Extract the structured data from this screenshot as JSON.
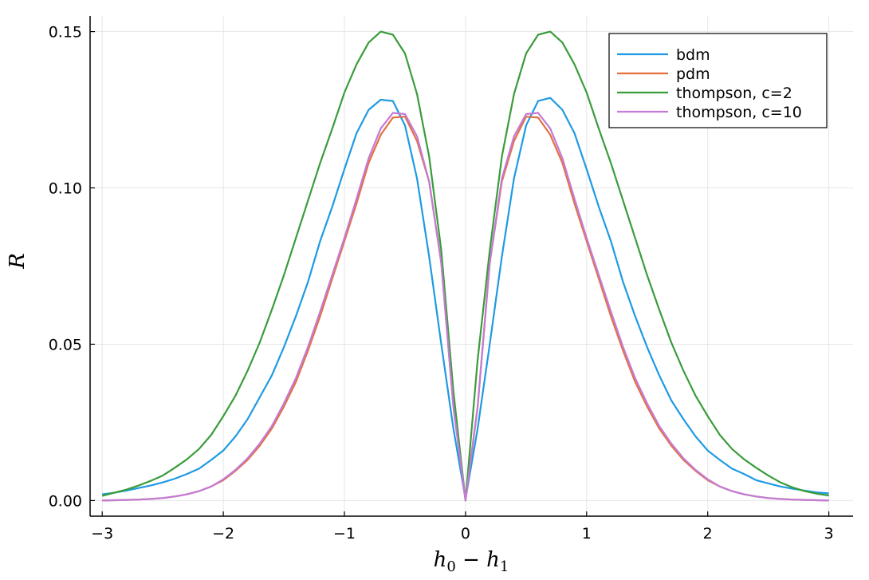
{
  "chart_data": {
    "type": "line",
    "title": "",
    "xlabel": "h_0 − h_1",
    "xlabel_parts": {
      "a": "h",
      "a_sub": "0",
      "op": " − ",
      "b": "h",
      "b_sub": "1"
    },
    "ylabel": "R",
    "xlim": [
      -3.1,
      3.2
    ],
    "ylim": [
      -0.005,
      0.155
    ],
    "xticks": [
      -3,
      -2,
      -1,
      0,
      1,
      2,
      3
    ],
    "xtick_labels": [
      "−3",
      "−2",
      "−1",
      "0",
      "1",
      "2",
      "3"
    ],
    "yticks": [
      0.0,
      0.05,
      0.1,
      0.15
    ],
    "ytick_labels": [
      "0.00",
      "0.05",
      "0.10",
      "0.15"
    ],
    "grid": true,
    "legend_position": "top-right",
    "x": [
      -3.0,
      -2.9,
      -2.8,
      -2.7,
      -2.6,
      -2.5,
      -2.4,
      -2.3,
      -2.2,
      -2.1,
      -2.0,
      -1.9,
      -1.8,
      -1.7,
      -1.6,
      -1.5,
      -1.4,
      -1.3,
      -1.2,
      -1.1,
      -1.0,
      -0.9,
      -0.8,
      -0.7,
      -0.6,
      -0.5,
      -0.4,
      -0.3,
      -0.2,
      -0.1,
      0.0,
      0.1,
      0.2,
      0.3,
      0.4,
      0.5,
      0.6,
      0.7,
      0.8,
      0.9,
      1.0,
      1.1,
      1.2,
      1.3,
      1.4,
      1.5,
      1.6,
      1.7,
      1.8,
      1.9,
      2.0,
      2.1,
      2.2,
      2.3,
      2.4,
      2.5,
      2.6,
      2.7,
      2.8,
      2.9,
      3.0
    ],
    "series": [
      {
        "name": "bdm",
        "color": "#1f9ae3",
        "values": [
          0.002,
          0.0025,
          0.0032,
          0.004,
          0.0048,
          0.0058,
          0.007,
          0.0085,
          0.0102,
          0.013,
          0.016,
          0.0205,
          0.026,
          0.033,
          0.04,
          0.049,
          0.059,
          0.07,
          0.083,
          0.094,
          0.106,
          0.1175,
          0.125,
          0.1282,
          0.1278,
          0.12,
          0.103,
          0.078,
          0.05,
          0.023,
          0.0005,
          0.023,
          0.05,
          0.078,
          0.103,
          0.12,
          0.1278,
          0.1288,
          0.125,
          0.1175,
          0.106,
          0.094,
          0.083,
          0.07,
          0.059,
          0.049,
          0.04,
          0.032,
          0.026,
          0.0205,
          0.016,
          0.013,
          0.0102,
          0.0085,
          0.0065,
          0.0055,
          0.0045,
          0.0038,
          0.0032,
          0.0026,
          0.0023
        ]
      },
      {
        "name": "pdm",
        "color": "#e5703f",
        "values": [
          0.0,
          0.0001,
          0.0002,
          0.0003,
          0.0005,
          0.0008,
          0.0013,
          0.002,
          0.003,
          0.0045,
          0.0065,
          0.0095,
          0.013,
          0.0175,
          0.023,
          0.03,
          0.038,
          0.048,
          0.059,
          0.071,
          0.083,
          0.095,
          0.108,
          0.117,
          0.1225,
          0.1228,
          0.115,
          0.102,
          0.076,
          0.03,
          0.0,
          0.03,
          0.076,
          0.102,
          0.115,
          0.1228,
          0.1225,
          0.117,
          0.108,
          0.095,
          0.083,
          0.071,
          0.059,
          0.048,
          0.038,
          0.03,
          0.023,
          0.0175,
          0.013,
          0.0095,
          0.0065,
          0.0045,
          0.003,
          0.002,
          0.0013,
          0.0008,
          0.0005,
          0.0003,
          0.0002,
          0.0001,
          0.0
        ]
      },
      {
        "name": "thompson, c=2",
        "color": "#3a9c3a",
        "values": [
          0.0015,
          0.0025,
          0.0035,
          0.0048,
          0.0063,
          0.008,
          0.0105,
          0.0132,
          0.0165,
          0.021,
          0.027,
          0.0335,
          0.0415,
          0.0505,
          0.061,
          0.072,
          0.084,
          0.096,
          0.108,
          0.119,
          0.1305,
          0.1395,
          0.1465,
          0.15,
          0.149,
          0.143,
          0.13,
          0.11,
          0.08,
          0.035,
          0.0,
          0.045,
          0.08,
          0.11,
          0.13,
          0.143,
          0.149,
          0.15,
          0.1465,
          0.1395,
          0.1305,
          0.119,
          0.108,
          0.096,
          0.084,
          0.072,
          0.061,
          0.0505,
          0.0415,
          0.0335,
          0.027,
          0.021,
          0.0165,
          0.0132,
          0.0105,
          0.008,
          0.0058,
          0.0042,
          0.003,
          0.0022,
          0.0016
        ]
      },
      {
        "name": "thompson, c=10",
        "color": "#c27bd6",
        "values": [
          0.0,
          0.0001,
          0.0002,
          0.0003,
          0.0005,
          0.0008,
          0.0013,
          0.002,
          0.003,
          0.0045,
          0.0068,
          0.0098,
          0.0135,
          0.0182,
          0.0238,
          0.031,
          0.0392,
          0.0492,
          0.0605,
          0.0722,
          0.084,
          0.0965,
          0.1095,
          0.119,
          0.124,
          0.1236,
          0.1165,
          0.102,
          0.076,
          0.03,
          0.0,
          0.03,
          0.076,
          0.103,
          0.1165,
          0.1236,
          0.124,
          0.119,
          0.1095,
          0.0965,
          0.084,
          0.0722,
          0.0605,
          0.0492,
          0.0392,
          0.031,
          0.0238,
          0.0182,
          0.0135,
          0.0098,
          0.0068,
          0.0045,
          0.003,
          0.002,
          0.0013,
          0.0008,
          0.0005,
          0.0003,
          0.0002,
          0.0001,
          0.0
        ]
      }
    ]
  }
}
